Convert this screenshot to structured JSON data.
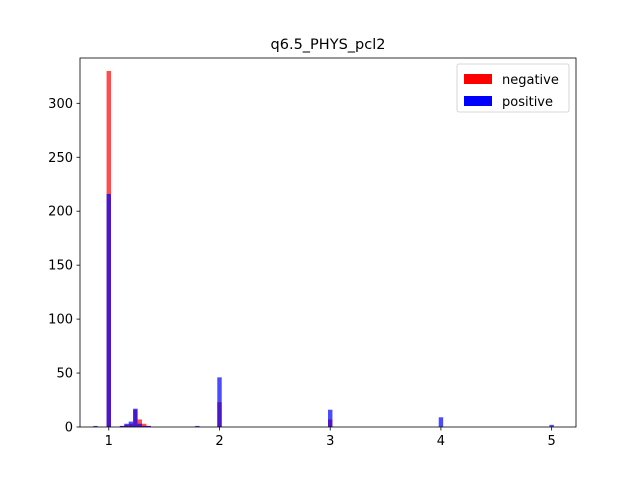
{
  "chart_data": {
    "type": "bar",
    "title": "q6.5_PHYS_pcl2",
    "xlabel": "",
    "ylabel": "",
    "xlim": [
      0.74,
      5.22
    ],
    "ylim": [
      0,
      342
    ],
    "xticks": [
      1,
      2,
      3,
      4,
      5
    ],
    "yticks": [
      0,
      50,
      100,
      150,
      200,
      250,
      300
    ],
    "bin_width": 0.04,
    "legend_position": "top-right",
    "series": [
      {
        "name": "negative",
        "color": "#ff0000",
        "x": [
          1.0,
          1.12,
          1.16,
          1.2,
          1.24,
          1.28,
          1.32,
          1.36,
          2.0,
          3.0
        ],
        "values": [
          330,
          1,
          2,
          3,
          16,
          7,
          3,
          1,
          23,
          7
        ]
      },
      {
        "name": "positive",
        "color": "#0000ff",
        "x": [
          0.88,
          1.0,
          1.12,
          1.16,
          1.2,
          1.24,
          1.28,
          1.32,
          1.36,
          1.8,
          2.0,
          3.0,
          4.0,
          5.0
        ],
        "values": [
          1,
          216,
          1,
          3,
          5,
          17,
          3,
          1,
          1,
          1,
          46,
          16,
          9,
          2
        ]
      }
    ]
  }
}
